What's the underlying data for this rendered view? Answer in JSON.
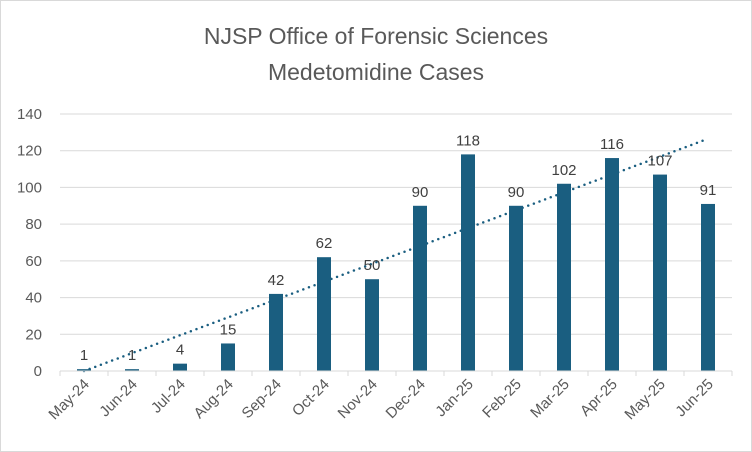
{
  "chart_data": {
    "type": "bar",
    "title": [
      "NJSP Office of Forensic Sciences",
      "Medetomidine Cases"
    ],
    "categories": [
      "May-24",
      "Jun-24",
      "Jul-24",
      "Aug-24",
      "Sep-24",
      "Oct-24",
      "Nov-24",
      "Dec-24",
      "Jan-25",
      "Feb-25",
      "Mar-25",
      "Apr-25",
      "May-25",
      "Jun-25"
    ],
    "values": [
      1,
      1,
      4,
      15,
      42,
      62,
      50,
      90,
      118,
      90,
      102,
      116,
      107,
      91
    ],
    "ylim": [
      0,
      140
    ],
    "yticks": [
      0,
      20,
      40,
      60,
      80,
      100,
      120,
      140
    ],
    "grid": true,
    "xlabel": "",
    "ylabel": "",
    "trendline": {
      "type": "linear",
      "start": 0,
      "end": 126.5
    },
    "colors": {
      "bar": "#1a5e80",
      "trend": "#1a5e80",
      "grid": "#d9d9d9",
      "text": "#595959"
    }
  }
}
